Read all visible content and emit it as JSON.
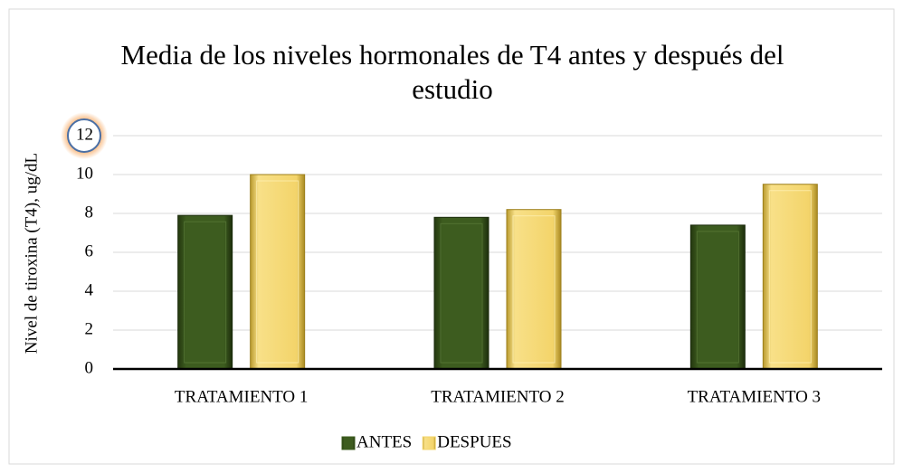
{
  "chart_data": {
    "type": "bar",
    "title": "Media de los niveles hormonales de T4 antes y después del estudio",
    "y_label": "Nivel de tiroxina (T4), ug/dL",
    "categories": [
      "TRATAMIENTO 1",
      "TRATAMIENTO 2",
      "TRATAMIENTO 3"
    ],
    "series": [
      {
        "name": "ANTES",
        "color": "#3d5c1f",
        "values": [
          7.9,
          7.8,
          7.4
        ]
      },
      {
        "name": "DESPUES",
        "color": "#f3d46a",
        "values": [
          10.0,
          8.2,
          9.5
        ]
      }
    ],
    "ylim": [
      0,
      12
    ],
    "yticks": [
      0,
      2,
      4,
      6,
      8,
      10,
      12
    ],
    "grid": true,
    "legend": "bottom"
  }
}
